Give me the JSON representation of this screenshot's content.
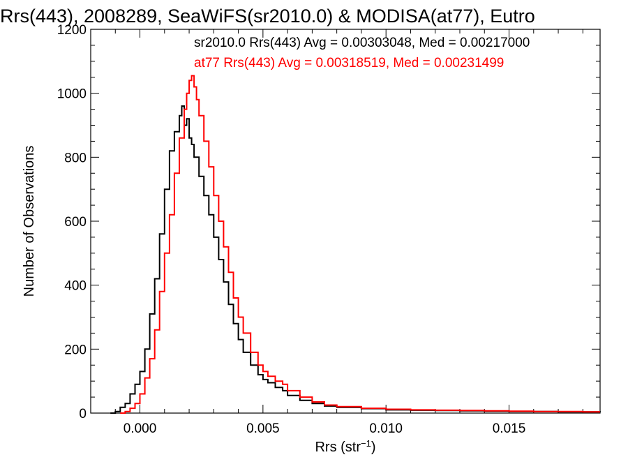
{
  "chart_data": {
    "type": "line",
    "title": "Rrs(443), 2008289, SeaWiFS(sr2010.0) & MODISA(at77), Eutro",
    "xlabel": "Rrs (str",
    "xlabel_sup": "−1",
    "xlabel_suffix": ")",
    "ylabel": "Number of Observations",
    "xlim": [
      -0.002,
      0.0187
    ],
    "ylim": [
      0,
      1200
    ],
    "xticks": [
      0.0,
      0.005,
      0.01,
      0.015
    ],
    "xtick_labels": [
      "0.000",
      "0.005",
      "0.010",
      "0.015"
    ],
    "yticks": [
      0,
      200,
      400,
      600,
      800,
      1000,
      1200
    ],
    "ytick_labels": [
      "0",
      "200",
      "400",
      "600",
      "800",
      "1000",
      "1200"
    ],
    "grid": false,
    "annotations": [
      {
        "text": "sr2010.0 Rrs(443) Avg = 0.00303048, Med = 0.00217000",
        "color": "#000000"
      },
      {
        "text": "at77 Rrs(443) Avg = 0.00318519, Med = 0.00231499",
        "color": "#ff0000"
      }
    ],
    "series": [
      {
        "color": "#000000",
        "x": [
          -0.0012,
          -0.001,
          -0.0008,
          -0.0006,
          -0.0004,
          -0.0002,
          0.0,
          0.0002,
          0.0004,
          0.0006,
          0.0008,
          0.001,
          0.0012,
          0.0014,
          0.0016,
          0.0017,
          0.0018,
          0.0019,
          0.002,
          0.0021,
          0.0022,
          0.0024,
          0.0026,
          0.0028,
          0.003,
          0.0032,
          0.0034,
          0.0036,
          0.0038,
          0.004,
          0.0042,
          0.0045,
          0.0048,
          0.005,
          0.0052,
          0.0055,
          0.0058,
          0.006,
          0.0065,
          0.007,
          0.0075,
          0.008,
          0.009,
          0.01,
          0.011,
          0.012,
          0.013,
          0.014,
          0.015,
          0.016,
          0.017,
          0.018,
          0.0187
        ],
        "values": [
          0,
          5,
          18,
          30,
          60,
          90,
          130,
          200,
          310,
          420,
          560,
          700,
          820,
          880,
          930,
          960,
          900,
          920,
          860,
          840,
          800,
          740,
          680,
          620,
          550,
          480,
          410,
          340,
          280,
          230,
          190,
          150,
          120,
          105,
          95,
          80,
          70,
          55,
          40,
          30,
          22,
          18,
          14,
          10,
          9,
          8,
          7,
          6,
          5,
          5,
          4,
          4,
          3
        ]
      },
      {
        "color": "#ff0000",
        "x": [
          -0.0008,
          -0.0006,
          -0.0004,
          -0.0002,
          0.0,
          0.0002,
          0.0004,
          0.0006,
          0.0008,
          0.001,
          0.0012,
          0.0014,
          0.0016,
          0.0018,
          0.0019,
          0.002,
          0.0021,
          0.0022,
          0.0023,
          0.0024,
          0.0026,
          0.0028,
          0.003,
          0.0032,
          0.0034,
          0.0036,
          0.0038,
          0.004,
          0.0042,
          0.0045,
          0.0048,
          0.005,
          0.0052,
          0.0055,
          0.0058,
          0.006,
          0.0065,
          0.007,
          0.0075,
          0.008,
          0.009,
          0.01,
          0.011,
          0.012,
          0.013,
          0.014,
          0.015,
          0.016,
          0.017,
          0.018,
          0.0187
        ],
        "values": [
          0,
          5,
          15,
          30,
          60,
          110,
          170,
          260,
          380,
          500,
          620,
          750,
          860,
          950,
          1000,
          1040,
          1055,
          1020,
          980,
          930,
          850,
          770,
          680,
          600,
          520,
          440,
          360,
          300,
          250,
          190,
          150,
          130,
          115,
          100,
          90,
          70,
          50,
          35,
          25,
          20,
          15,
          12,
          10,
          9,
          8,
          7,
          6,
          5,
          5,
          4,
          4
        ]
      }
    ]
  }
}
